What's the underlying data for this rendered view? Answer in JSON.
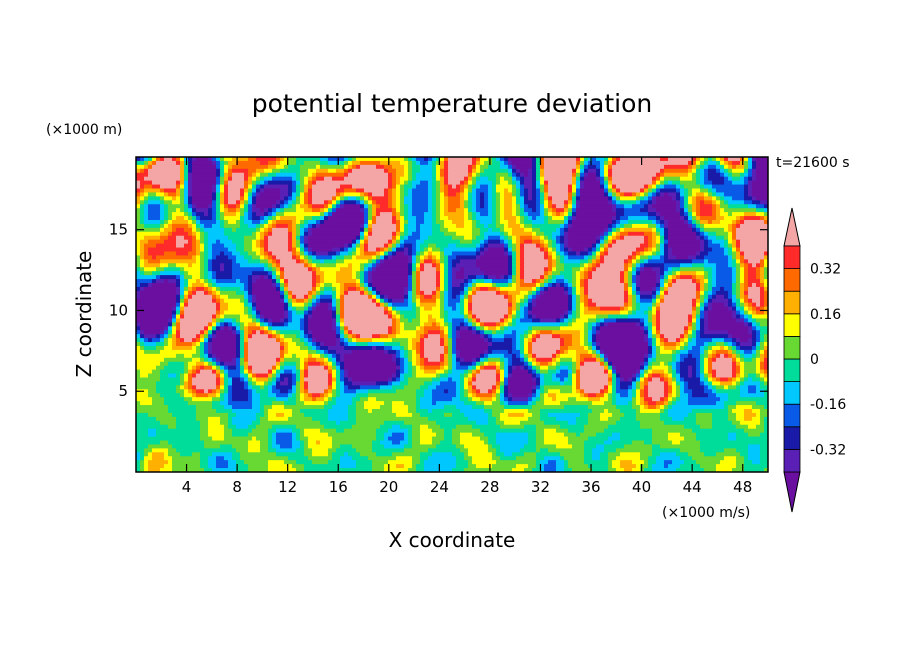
{
  "chart_data": {
    "type": "heatmap",
    "title": "potential temperature deviation",
    "xlabel": "X coordinate",
    "ylabel": "Z coordinate",
    "x_unit": "(×1000 m/s)",
    "y_unit": "(×1000 m)",
    "time_label": "t=21600 s",
    "xlim": [
      0,
      50
    ],
    "ylim": [
      0,
      19.5
    ],
    "x_ticks": [
      4,
      8,
      12,
      16,
      20,
      24,
      28,
      32,
      36,
      40,
      44,
      48
    ],
    "y_ticks": [
      5,
      10,
      15
    ],
    "colorbar": {
      "tick_labels": [
        "0.32",
        "0.16",
        "0",
        "-0.16",
        "-0.32"
      ],
      "tick_values": [
        0.32,
        0.16,
        0,
        -0.16,
        -0.32
      ],
      "levels": [
        -0.4,
        -0.32,
        -0.24,
        -0.16,
        -0.08,
        0,
        0.08,
        0.16,
        0.24,
        0.32,
        0.4
      ],
      "colors": [
        "#6a0fa0",
        "#5a1fb4",
        "#1a1aa8",
        "#0a5ae8",
        "#00c8ff",
        "#00dc9a",
        "#68d832",
        "#ffff00",
        "#ffb000",
        "#ff6a00",
        "#ff2a2a",
        "#f4a6a6"
      ],
      "extend": "both"
    },
    "field_description_upper": "alternating large patches of high (pink, >0.4) and low (purple, <-0.4) values for z > 5",
    "field_description_lower": "turbulent mixed values near zero for z < 5"
  }
}
